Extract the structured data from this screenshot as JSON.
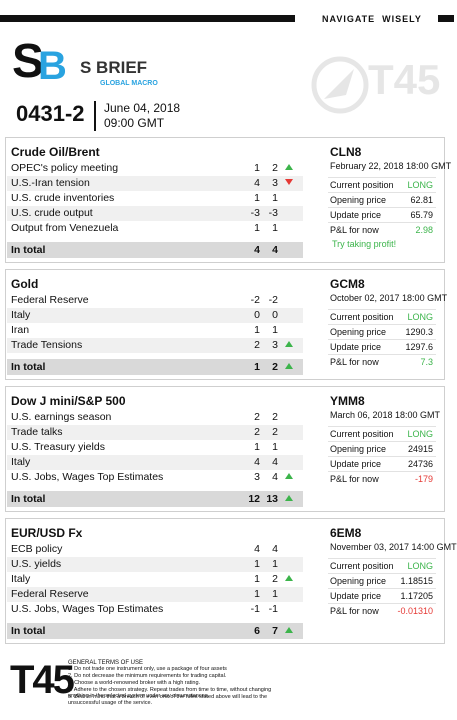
{
  "header": {
    "navigate": "NAVIGATE  WISELY",
    "logo_s": "S",
    "logo_b": "B",
    "brand": "S BRIEF",
    "subbrand": "GLOBAL MACRO",
    "watermark": "T45",
    "issue": "0431-2",
    "date": "June 04, 2018",
    "time": "09:00 GMT"
  },
  "sections": [
    {
      "title": "Crude Oil/Brent",
      "rows": [
        {
          "name": "OPEC's policy meeting",
          "a": 1,
          "b": 2,
          "trend": "up"
        },
        {
          "name": "U.S.-Iran tension",
          "a": 4,
          "b": 3,
          "trend": "down"
        },
        {
          "name": "U.S. crude inventories",
          "a": 1,
          "b": 1
        },
        {
          "name": "U.S. crude output",
          "a": -3,
          "b": -3
        },
        {
          "name": "Output from Venezuela",
          "a": 1,
          "b": 1
        }
      ],
      "total": {
        "name": "In total",
        "a": 4,
        "b": 4
      },
      "code": "CLN8",
      "datetime": "February 22, 2018 18:00 GMT",
      "details": [
        {
          "label": "Current position",
          "value": "LONG",
          "color": "#3cb44b"
        },
        {
          "label": "Opening price",
          "value": "62.81"
        },
        {
          "label": "Update price",
          "value": "65.79"
        },
        {
          "label": "P&L for now",
          "value": "2.98",
          "color": "#3cb44b"
        }
      ],
      "note": "Try taking profit!"
    },
    {
      "title": "Gold",
      "rows": [
        {
          "name": "Federal Reserve",
          "a": -2,
          "b": -2
        },
        {
          "name": "Italy",
          "a": 0,
          "b": 0
        },
        {
          "name": "Iran",
          "a": 1,
          "b": 1
        },
        {
          "name": "Trade Tensions",
          "a": 2,
          "b": 3,
          "trend": "up"
        }
      ],
      "total": {
        "name": "In total",
        "a": 1,
        "b": 2,
        "trend": "up"
      },
      "code": "GCM8",
      "datetime": "October 02, 2017 18:00 GMT",
      "details": [
        {
          "label": "Current position",
          "value": "LONG",
          "color": "#3cb44b"
        },
        {
          "label": "Opening price",
          "value": "1290.3"
        },
        {
          "label": "Update price",
          "value": "1297.6"
        },
        {
          "label": "P&L for now",
          "value": "7.3",
          "color": "#3cb44b"
        }
      ]
    },
    {
      "title": "Dow J mini/S&P 500",
      "rows": [
        {
          "name": "U.S. earnings season",
          "a": 2,
          "b": 2
        },
        {
          "name": "Trade talks",
          "a": 2,
          "b": 2
        },
        {
          "name": "U.S. Treasury yields",
          "a": 1,
          "b": 1
        },
        {
          "name": "Italy",
          "a": 4,
          "b": 4
        },
        {
          "name": "U.S. Jobs, Wages Top Estimates",
          "a": 3,
          "b": 4,
          "trend": "up"
        }
      ],
      "total": {
        "name": "In total",
        "a": 12,
        "b": 13,
        "trend": "up"
      },
      "code": "YMM8",
      "datetime": "March 06, 2018 18:00 GMT",
      "details": [
        {
          "label": "Current position",
          "value": "LONG",
          "color": "#3cb44b"
        },
        {
          "label": "Opening price",
          "value": "24915"
        },
        {
          "label": "Update price",
          "value": "24736"
        },
        {
          "label": "P&L for now",
          "value": "-179",
          "color": "#e53935"
        }
      ]
    },
    {
      "title": "EUR/USD Fx",
      "rows": [
        {
          "name": "ECB policy",
          "a": 4,
          "b": 4
        },
        {
          "name": "U.S. yields",
          "a": 1,
          "b": 1
        },
        {
          "name": "Italy",
          "a": 1,
          "b": 2,
          "trend": "up"
        },
        {
          "name": "Federal Reserve",
          "a": 1,
          "b": 1
        },
        {
          "name": "U.S. Jobs, Wages Top Estimates",
          "a": -1,
          "b": -1
        }
      ],
      "total": {
        "name": "In total",
        "a": 6,
        "b": 7,
        "trend": "up"
      },
      "code": "6EM8",
      "datetime": "November 03, 2017 14:00 GMT",
      "details": [
        {
          "label": "Current position",
          "value": "LONG",
          "color": "#3cb44b"
        },
        {
          "label": "Opening price",
          "value": "1.18515"
        },
        {
          "label": "Update price",
          "value": "1.17205"
        },
        {
          "label": "P&L for now",
          "value": "-0.01310",
          "color": "#e53935"
        }
      ]
    }
  ],
  "footer": {
    "logo": "T45",
    "terms_title": "GENERAL TERMS OF USE",
    "terms": [
      "1. Do not trade one instrument only, use a package of four assets",
      "2. Do not decrease the minimum requirements for trading capital.",
      "3. Choose a world-renowned broker with a high rating.",
      "4. Adhere to the chosen strategy. Repeat trades from time to time, without changing anything in the selected system under any circumstances.",
      "5. Bear in mind that a breach of even one of the rules stated above will lead to the unsuccessful usage of the service."
    ]
  }
}
